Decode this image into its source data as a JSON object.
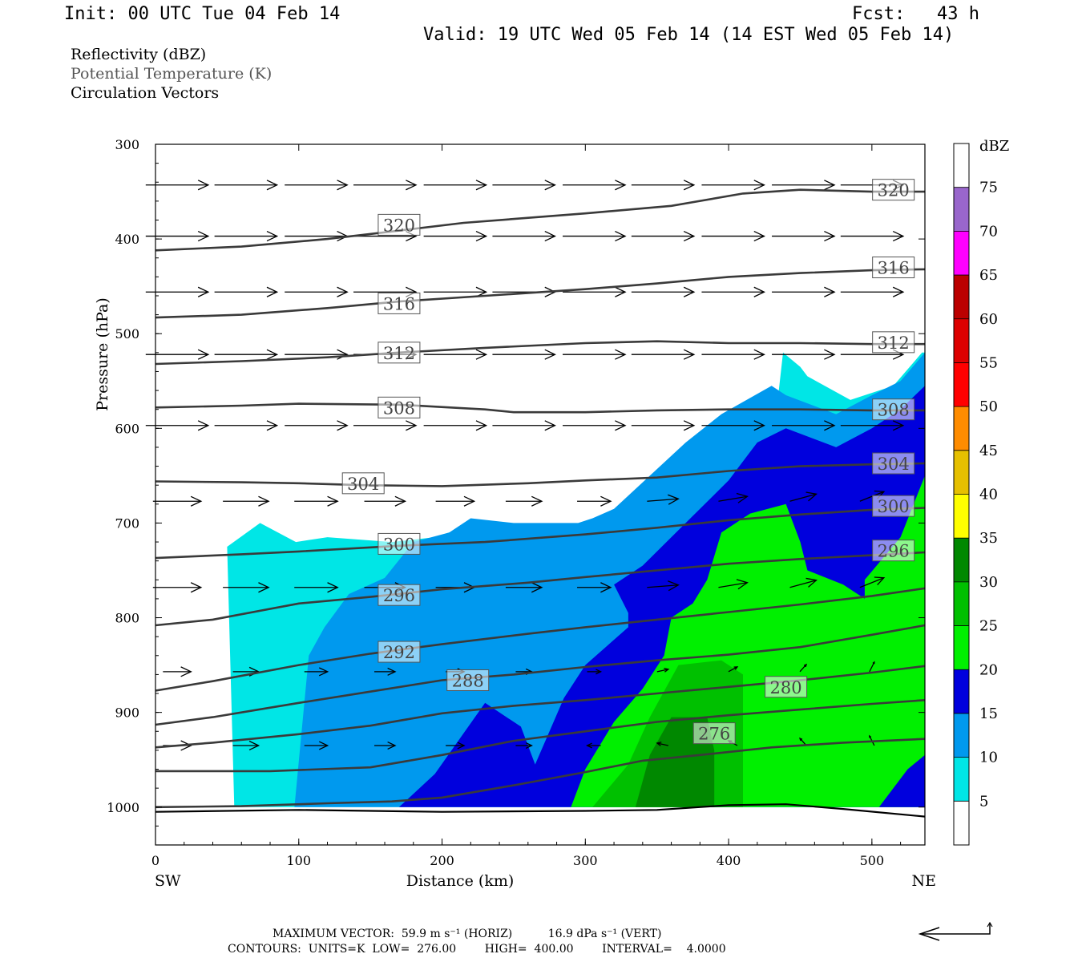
{
  "header": {
    "init": "Init: 00 UTC Tue 04 Feb 14",
    "fcst": "Fcst:   43 h",
    "valid": "Valid: 19 UTC Wed 05 Feb 14 (14 EST Wed 05 Feb 14)",
    "fields": [
      "Reflectivity (dBZ)",
      "Potential Temperature (K)",
      "Circulation Vectors"
    ]
  },
  "colors": {
    "dbz": [
      "#ffffff",
      "#00e6e6",
      "#0099ee",
      "#0000dd",
      "#00f000",
      "#00c000",
      "#008800",
      "#ffff00",
      "#e6c000",
      "#ff8c00",
      "#ff0000",
      "#dd0000",
      "#bb0000",
      "#ff00ff",
      "#9966cc"
    ],
    "contour": "#3a3a3a"
  },
  "chart_data": {
    "type": "cross-section",
    "xlabel": "Distance (km)",
    "ylabel": "Pressure (hPa)",
    "x_ticks": [
      0,
      100,
      200,
      300,
      400,
      500
    ],
    "y_ticks": [
      300,
      400,
      500,
      600,
      700,
      800,
      900,
      1000
    ],
    "xlim": [
      0,
      537
    ],
    "ylim": [
      1040,
      300
    ],
    "x_end_labels": {
      "left": "SW",
      "right": "NE"
    },
    "colorbar": {
      "title": "dBZ",
      "levels": [
        5,
        10,
        15,
        20,
        25,
        30,
        35,
        40,
        45,
        50,
        55,
        60,
        65,
        70,
        75
      ]
    },
    "reflectivity_regions": [
      {
        "dbz": 5,
        "polygon": [
          [
            55,
            1000
          ],
          [
            50,
            725
          ],
          [
            73,
            700
          ],
          [
            98,
            720
          ],
          [
            120,
            715
          ],
          [
            165,
            720
          ],
          [
            195,
            715
          ],
          [
            215,
            705
          ],
          [
            290,
            703
          ],
          [
            310,
            700
          ],
          [
            315,
            690
          ],
          [
            335,
            675
          ],
          [
            355,
            665
          ],
          [
            370,
            645
          ],
          [
            395,
            610
          ],
          [
            415,
            590
          ],
          [
            435,
            560
          ],
          [
            438,
            520
          ],
          [
            450,
            535
          ],
          [
            455,
            545
          ],
          [
            485,
            570
          ],
          [
            515,
            555
          ],
          [
            535,
            520
          ],
          [
            537,
            520
          ],
          [
            537,
            1000
          ]
        ]
      },
      {
        "dbz": 10,
        "polygon": [
          [
            97,
            1000
          ],
          [
            107,
            840
          ],
          [
            118,
            810
          ],
          [
            135,
            775
          ],
          [
            160,
            758
          ],
          [
            180,
            720
          ],
          [
            205,
            710
          ],
          [
            220,
            695
          ],
          [
            250,
            700
          ],
          [
            295,
            700
          ],
          [
            305,
            695
          ],
          [
            320,
            685
          ],
          [
            345,
            650
          ],
          [
            370,
            615
          ],
          [
            395,
            585
          ],
          [
            430,
            555
          ],
          [
            440,
            565
          ],
          [
            475,
            585
          ],
          [
            500,
            565
          ],
          [
            520,
            550
          ],
          [
            537,
            520
          ],
          [
            537,
            1000
          ]
        ]
      },
      {
        "dbz": 15,
        "polygon": [
          [
            170,
            1000
          ],
          [
            195,
            965
          ],
          [
            230,
            890
          ],
          [
            255,
            915
          ],
          [
            265,
            955
          ],
          [
            285,
            885
          ],
          [
            300,
            850
          ],
          [
            315,
            830
          ],
          [
            330,
            810
          ],
          [
            330,
            795
          ],
          [
            320,
            765
          ],
          [
            340,
            745
          ],
          [
            370,
            700
          ],
          [
            400,
            655
          ],
          [
            420,
            615
          ],
          [
            440,
            600
          ],
          [
            475,
            620
          ],
          [
            500,
            600
          ],
          [
            520,
            580
          ],
          [
            537,
            555
          ],
          [
            537,
            1000
          ]
        ]
      },
      {
        "dbz": 20,
        "polygon": [
          [
            290,
            1000
          ],
          [
            300,
            960
          ],
          [
            320,
            910
          ],
          [
            340,
            875
          ],
          [
            355,
            840
          ],
          [
            360,
            800
          ],
          [
            375,
            785
          ],
          [
            385,
            760
          ],
          [
            395,
            710
          ],
          [
            415,
            690
          ],
          [
            440,
            680
          ],
          [
            450,
            720
          ],
          [
            455,
            750
          ],
          [
            480,
            765
          ],
          [
            495,
            780
          ],
          [
            495,
            760
          ],
          [
            520,
            715
          ],
          [
            537,
            650
          ],
          [
            537,
            1000
          ]
        ]
      },
      {
        "dbz": 25,
        "polygon": [
          [
            305,
            1000
          ],
          [
            330,
            955
          ],
          [
            345,
            905
          ],
          [
            365,
            850
          ],
          [
            395,
            845
          ],
          [
            410,
            860
          ],
          [
            410,
            930
          ],
          [
            410,
            1000
          ]
        ]
      },
      {
        "dbz": 30,
        "polygon": [
          [
            335,
            1000
          ],
          [
            345,
            945
          ],
          [
            360,
            905
          ],
          [
            385,
            905
          ],
          [
            390,
            940
          ],
          [
            390,
            1000
          ]
        ]
      },
      {
        "dbz": 15,
        "polygon": [
          [
            505,
            1000
          ],
          [
            525,
            960
          ],
          [
            537,
            945
          ],
          [
            537,
            1000
          ]
        ]
      }
    ],
    "theta_contours": [
      {
        "value": 320,
        "points": [
          [
            0,
            412
          ],
          [
            60,
            408
          ],
          [
            120,
            400
          ],
          [
            160,
            393
          ],
          [
            215,
            383
          ],
          [
            300,
            373
          ],
          [
            360,
            365
          ],
          [
            410,
            352
          ],
          [
            450,
            348
          ],
          [
            500,
            350
          ],
          [
            537,
            350
          ]
        ],
        "labels": [
          [
            170,
            385
          ],
          [
            515,
            348
          ]
        ]
      },
      {
        "value": 316,
        "points": [
          [
            0,
            483
          ],
          [
            60,
            480
          ],
          [
            120,
            473
          ],
          [
            170,
            466
          ],
          [
            230,
            460
          ],
          [
            300,
            453
          ],
          [
            350,
            447
          ],
          [
            400,
            440
          ],
          [
            450,
            436
          ],
          [
            500,
            433
          ],
          [
            537,
            432
          ]
        ],
        "labels": [
          [
            170,
            468
          ],
          [
            515,
            430
          ]
        ]
      },
      {
        "value": 312,
        "points": [
          [
            0,
            532
          ],
          [
            60,
            529
          ],
          [
            120,
            525
          ],
          [
            170,
            520
          ],
          [
            230,
            515
          ],
          [
            300,
            510
          ],
          [
            350,
            508
          ],
          [
            400,
            510
          ],
          [
            450,
            510
          ],
          [
            500,
            511
          ],
          [
            537,
            511
          ]
        ],
        "labels": [
          [
            170,
            520
          ],
          [
            515,
            509
          ]
        ]
      },
      {
        "value": 308,
        "points": [
          [
            0,
            578
          ],
          [
            60,
            576
          ],
          [
            100,
            574
          ],
          [
            170,
            575
          ],
          [
            230,
            580
          ],
          [
            250,
            583
          ],
          [
            300,
            583
          ],
          [
            350,
            581
          ],
          [
            400,
            580
          ],
          [
            450,
            580
          ],
          [
            500,
            581
          ],
          [
            537,
            581
          ]
        ],
        "labels": [
          [
            170,
            578
          ],
          [
            515,
            580
          ]
        ]
      },
      {
        "value": 304,
        "points": [
          [
            0,
            656
          ],
          [
            60,
            657
          ],
          [
            100,
            658
          ],
          [
            145,
            660
          ],
          [
            200,
            661
          ],
          [
            260,
            658
          ],
          [
            300,
            655
          ],
          [
            350,
            652
          ],
          [
            400,
            645
          ],
          [
            450,
            640
          ],
          [
            500,
            638
          ],
          [
            537,
            637
          ]
        ],
        "labels": [
          [
            145,
            658
          ],
          [
            515,
            637
          ]
        ]
      },
      {
        "value": 300,
        "points": [
          [
            0,
            737
          ],
          [
            60,
            733
          ],
          [
            100,
            730
          ],
          [
            170,
            724
          ],
          [
            230,
            720
          ],
          [
            300,
            712
          ],
          [
            350,
            705
          ],
          [
            400,
            697
          ],
          [
            450,
            691
          ],
          [
            500,
            686
          ],
          [
            537,
            684
          ]
        ],
        "labels": [
          [
            170,
            722
          ],
          [
            515,
            682
          ]
        ]
      },
      {
        "value": 296,
        "points": [
          [
            0,
            808
          ],
          [
            40,
            802
          ],
          [
            100,
            785
          ],
          [
            150,
            778
          ],
          [
            200,
            770
          ],
          [
            260,
            763
          ],
          [
            300,
            757
          ],
          [
            350,
            750
          ],
          [
            400,
            743
          ],
          [
            450,
            738
          ],
          [
            500,
            734
          ],
          [
            537,
            731
          ]
        ],
        "labels": [
          [
            170,
            776
          ],
          [
            515,
            729
          ]
        ]
      },
      {
        "value": 292,
        "points": [
          [
            0,
            877
          ],
          [
            40,
            867
          ],
          [
            100,
            850
          ],
          [
            150,
            838
          ],
          [
            200,
            828
          ],
          [
            260,
            817
          ],
          [
            300,
            810
          ],
          [
            350,
            802
          ],
          [
            400,
            794
          ],
          [
            450,
            786
          ],
          [
            500,
            777
          ],
          [
            537,
            769
          ]
        ],
        "labels": [
          [
            170,
            836
          ]
        ]
      },
      {
        "value": 288,
        "points": [
          [
            0,
            913
          ],
          [
            40,
            905
          ],
          [
            100,
            890
          ],
          [
            150,
            878
          ],
          [
            200,
            866
          ],
          [
            250,
            860
          ],
          [
            300,
            852
          ],
          [
            350,
            845
          ],
          [
            400,
            839
          ],
          [
            450,
            831
          ],
          [
            500,
            818
          ],
          [
            537,
            808
          ]
        ],
        "labels": [
          [
            218,
            866
          ]
        ]
      },
      {
        "value": 284,
        "points": [
          [
            0,
            937
          ],
          [
            40,
            932
          ],
          [
            100,
            923
          ],
          [
            150,
            914
          ],
          [
            200,
            901
          ],
          [
            250,
            893
          ],
          [
            300,
            887
          ],
          [
            350,
            880
          ],
          [
            400,
            873
          ],
          [
            450,
            866
          ],
          [
            500,
            858
          ],
          [
            537,
            851
          ]
        ],
        "labels": []
      },
      {
        "value": 280,
        "points": [
          [
            0,
            962
          ],
          [
            80,
            962
          ],
          [
            150,
            958
          ],
          [
            200,
            945
          ],
          [
            250,
            930
          ],
          [
            300,
            920
          ],
          [
            350,
            910
          ],
          [
            400,
            903
          ],
          [
            450,
            897
          ],
          [
            500,
            891
          ],
          [
            537,
            887
          ]
        ],
        "labels": [
          [
            440,
            873
          ]
        ]
      },
      {
        "value": 276,
        "points": [
          [
            0,
            1000
          ],
          [
            60,
            999
          ],
          [
            120,
            996
          ],
          [
            165,
            994
          ],
          [
            200,
            990
          ],
          [
            250,
            977
          ],
          [
            300,
            963
          ],
          [
            340,
            951
          ],
          [
            380,
            945
          ],
          [
            430,
            937
          ],
          [
            480,
            932
          ],
          [
            537,
            928
          ]
        ],
        "labels": [
          [
            390,
            922
          ]
        ]
      }
    ],
    "ground": [
      [
        0,
        1005
      ],
      [
        100,
        1003
      ],
      [
        200,
        1005
      ],
      [
        300,
        1004
      ],
      [
        350,
        1003
      ],
      [
        400,
        998
      ],
      [
        440,
        997
      ],
      [
        480,
        1002
      ],
      [
        537,
        1010
      ]
    ]
  },
  "footer": {
    "max_vector": "MAXIMUM VECTOR:  59.9 m s⁻¹ (HORIZ)          16.9 dPa s⁻¹ (VERT)",
    "contours": "CONTOURS:  UNITS=K  LOW=  276.00        HIGH=  400.00        INTERVAL=    4.0000"
  }
}
